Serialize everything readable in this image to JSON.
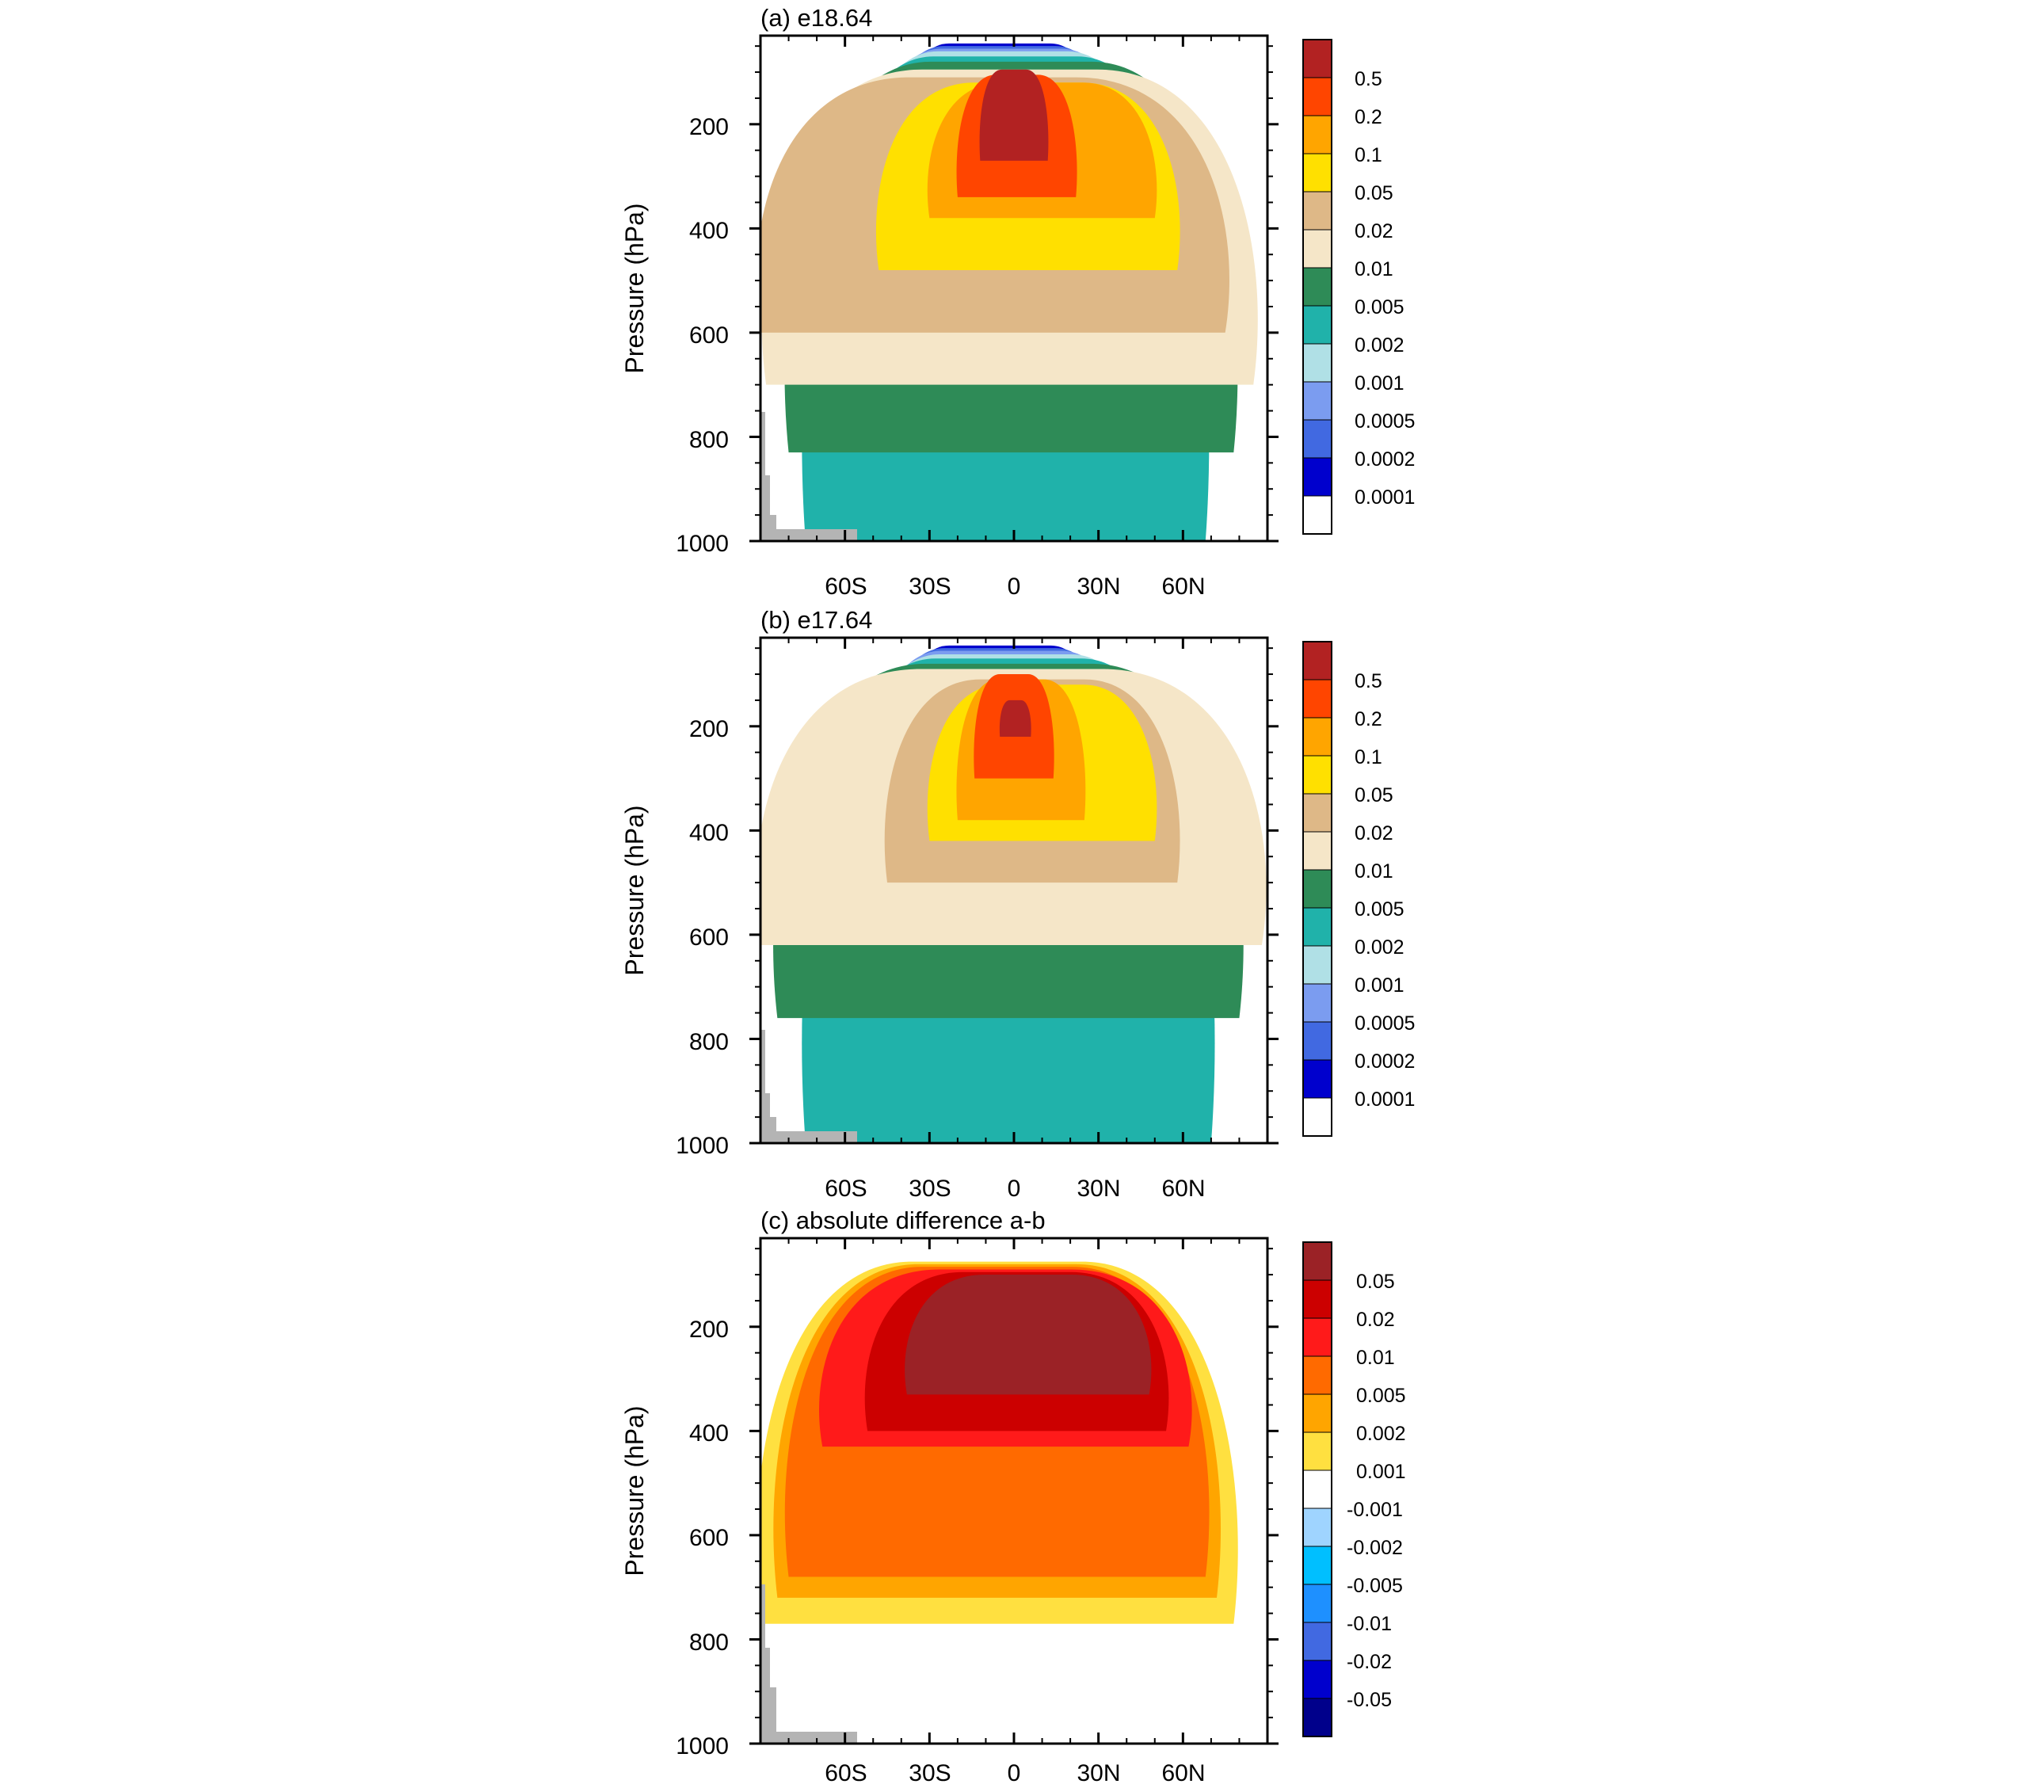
{
  "chart_data": [
    {
      "type": "heatmap",
      "title": "(a) e18.64",
      "ylabel": "Pressure (hPa)",
      "xlabel": "",
      "x_ticks": [
        "60S",
        "30S",
        "0",
        "30N",
        "60N"
      ],
      "x_tick_values": [
        -60,
        -30,
        0,
        30,
        60
      ],
      "y_ticks": [
        "200",
        "400",
        "600",
        "800",
        "1000"
      ],
      "y_tick_values": [
        200,
        400,
        600,
        800,
        1000
      ],
      "xlim": [
        -90,
        90
      ],
      "ylim": [
        1000,
        30
      ],
      "colorbar": {
        "labels": [
          "0.5",
          "0.2",
          "0.1",
          "0.05",
          "0.02",
          "0.01",
          "0.005",
          "0.002",
          "0.001",
          "0.0005",
          "0.0002",
          "0.0001"
        ],
        "colors": [
          "#b22222",
          "#ff4500",
          "#ffa500",
          "#ffe000",
          "#deb887",
          "#f5e6c8",
          "#2e8b57",
          "#20b2aa",
          "#b0e0e6",
          "#7b9cf0",
          "#4169e1",
          "#0000cd",
          "#ffffff"
        ]
      },
      "levels": [
        {
          "color": "#0000cd",
          "lat_lo": -55,
          "lat_hi": 45,
          "p_bottom": 1000,
          "p_top": 45
        },
        {
          "color": "#4169e1",
          "lat_lo": -60,
          "lat_hi": 50,
          "p_bottom": 1000,
          "p_top": 50
        },
        {
          "color": "#7b9cf0",
          "lat_lo": -64,
          "lat_hi": 55,
          "p_bottom": 1000,
          "p_top": 55
        },
        {
          "color": "#b0e0e6",
          "lat_lo": -68,
          "lat_hi": 60,
          "p_bottom": 1000,
          "p_top": 60
        },
        {
          "color": "#20b2aa",
          "lat_lo": -74,
          "lat_hi": 68,
          "p_bottom": 1000,
          "p_top": 70
        },
        {
          "color": "#2e8b57",
          "lat_lo": -80,
          "lat_hi": 78,
          "p_bottom": 830,
          "p_top": 80
        },
        {
          "color": "#f5e6c8",
          "lat_lo": -88,
          "lat_hi": 85,
          "p_bottom": 700,
          "p_top": 95
        },
        {
          "color": "#deb887",
          "lat_lo": -90,
          "lat_hi": 75,
          "p_bottom": 600,
          "p_top": 110
        },
        {
          "color": "#ffe000",
          "lat_lo": -48,
          "lat_hi": 58,
          "p_bottom": 480,
          "p_top": 120
        },
        {
          "color": "#ffa500",
          "lat_lo": -30,
          "lat_hi": 50,
          "p_bottom": 380,
          "p_top": 120
        },
        {
          "color": "#ff4500",
          "lat_lo": -20,
          "lat_hi": 22,
          "p_bottom": 340,
          "p_top": 105
        },
        {
          "color": "#b22222",
          "lat_lo": -12,
          "lat_hi": 12,
          "p_bottom": 270,
          "p_top": 95
        }
      ]
    },
    {
      "type": "heatmap",
      "title": "(b) e17.64",
      "ylabel": "Pressure (hPa)",
      "xlabel": "",
      "x_ticks": [
        "60S",
        "30S",
        "0",
        "30N",
        "60N"
      ],
      "x_tick_values": [
        -60,
        -30,
        0,
        30,
        60
      ],
      "y_ticks": [
        "200",
        "400",
        "600",
        "800",
        "1000"
      ],
      "y_tick_values": [
        200,
        400,
        600,
        800,
        1000
      ],
      "xlim": [
        -90,
        90
      ],
      "ylim": [
        1000,
        30
      ],
      "colorbar": {
        "labels": [
          "0.5",
          "0.2",
          "0.1",
          "0.05",
          "0.02",
          "0.01",
          "0.005",
          "0.002",
          "0.001",
          "0.0005",
          "0.0002",
          "0.0001"
        ],
        "colors": [
          "#b22222",
          "#ff4500",
          "#ffa500",
          "#ffe000",
          "#deb887",
          "#f5e6c8",
          "#2e8b57",
          "#20b2aa",
          "#b0e0e6",
          "#7b9cf0",
          "#4169e1",
          "#0000cd",
          "#ffffff"
        ]
      },
      "levels": [
        {
          "color": "#0000cd",
          "lat_lo": -55,
          "lat_hi": 45,
          "p_bottom": 1000,
          "p_top": 45
        },
        {
          "color": "#4169e1",
          "lat_lo": -60,
          "lat_hi": 50,
          "p_bottom": 1000,
          "p_top": 50
        },
        {
          "color": "#7b9cf0",
          "lat_lo": -64,
          "lat_hi": 55,
          "p_bottom": 1000,
          "p_top": 55
        },
        {
          "color": "#b0e0e6",
          "lat_lo": -68,
          "lat_hi": 62,
          "p_bottom": 1000,
          "p_top": 62
        },
        {
          "color": "#20b2aa",
          "lat_lo": -74,
          "lat_hi": 70,
          "p_bottom": 1000,
          "p_top": 70
        },
        {
          "color": "#2e8b57",
          "lat_lo": -84,
          "lat_hi": 80,
          "p_bottom": 760,
          "p_top": 80
        },
        {
          "color": "#f5e6c8",
          "lat_lo": -90,
          "lat_hi": 88,
          "p_bottom": 620,
          "p_top": 90
        },
        {
          "color": "#deb887",
          "lat_lo": -45,
          "lat_hi": 58,
          "p_bottom": 500,
          "p_top": 110
        },
        {
          "color": "#ffe000",
          "lat_lo": -30,
          "lat_hi": 50,
          "p_bottom": 420,
          "p_top": 120
        },
        {
          "color": "#ffa500",
          "lat_lo": -20,
          "lat_hi": 25,
          "p_bottom": 380,
          "p_top": 110
        },
        {
          "color": "#ff4500",
          "lat_lo": -14,
          "lat_hi": 14,
          "p_bottom": 300,
          "p_top": 100
        },
        {
          "color": "#b22222",
          "lat_lo": -5,
          "lat_hi": 6,
          "p_bottom": 220,
          "p_top": 150
        }
      ]
    },
    {
      "type": "heatmap",
      "title": "(c) absolute difference a-b",
      "ylabel": "Pressure (hPa)",
      "xlabel": "",
      "x_ticks": [
        "60S",
        "30S",
        "0",
        "30N",
        "60N"
      ],
      "x_tick_values": [
        -60,
        -30,
        0,
        30,
        60
      ],
      "y_ticks": [
        "200",
        "400",
        "600",
        "800",
        "1000"
      ],
      "y_tick_values": [
        200,
        400,
        600,
        800,
        1000
      ],
      "xlim": [
        -90,
        90
      ],
      "ylim": [
        1000,
        30
      ],
      "colorbar": {
        "labels": [
          "0.05",
          "0.02",
          "0.01",
          "0.005",
          "0.002",
          "0.001",
          "-0.001",
          "-0.002",
          "-0.005",
          "-0.01",
          "-0.02",
          "-0.05"
        ],
        "colors": [
          "#9b2226",
          "#cc0000",
          "#ff1a1a",
          "#ff6a00",
          "#ffa500",
          "#ffe040",
          "#ffffff",
          "#9fd4ff",
          "#00bfff",
          "#1e90ff",
          "#4169e1",
          "#0000cd",
          "#00008b"
        ]
      },
      "levels": [
        {
          "color": "#ffe040",
          "lat_lo": -90,
          "lat_hi": 78,
          "p_bottom": 770,
          "p_top": 75
        },
        {
          "color": "#ffa500",
          "lat_lo": -84,
          "lat_hi": 72,
          "p_bottom": 720,
          "p_top": 80
        },
        {
          "color": "#ff6a00",
          "lat_lo": -80,
          "lat_hi": 68,
          "p_bottom": 680,
          "p_top": 85
        },
        {
          "color": "#ff1a1a",
          "lat_lo": -68,
          "lat_hi": 62,
          "p_bottom": 430,
          "p_top": 90
        },
        {
          "color": "#cc0000",
          "lat_lo": -52,
          "lat_hi": 54,
          "p_bottom": 400,
          "p_top": 95
        },
        {
          "color": "#9b2226",
          "lat_lo": -38,
          "lat_hi": 48,
          "p_bottom": 330,
          "p_top": 100
        }
      ]
    }
  ]
}
